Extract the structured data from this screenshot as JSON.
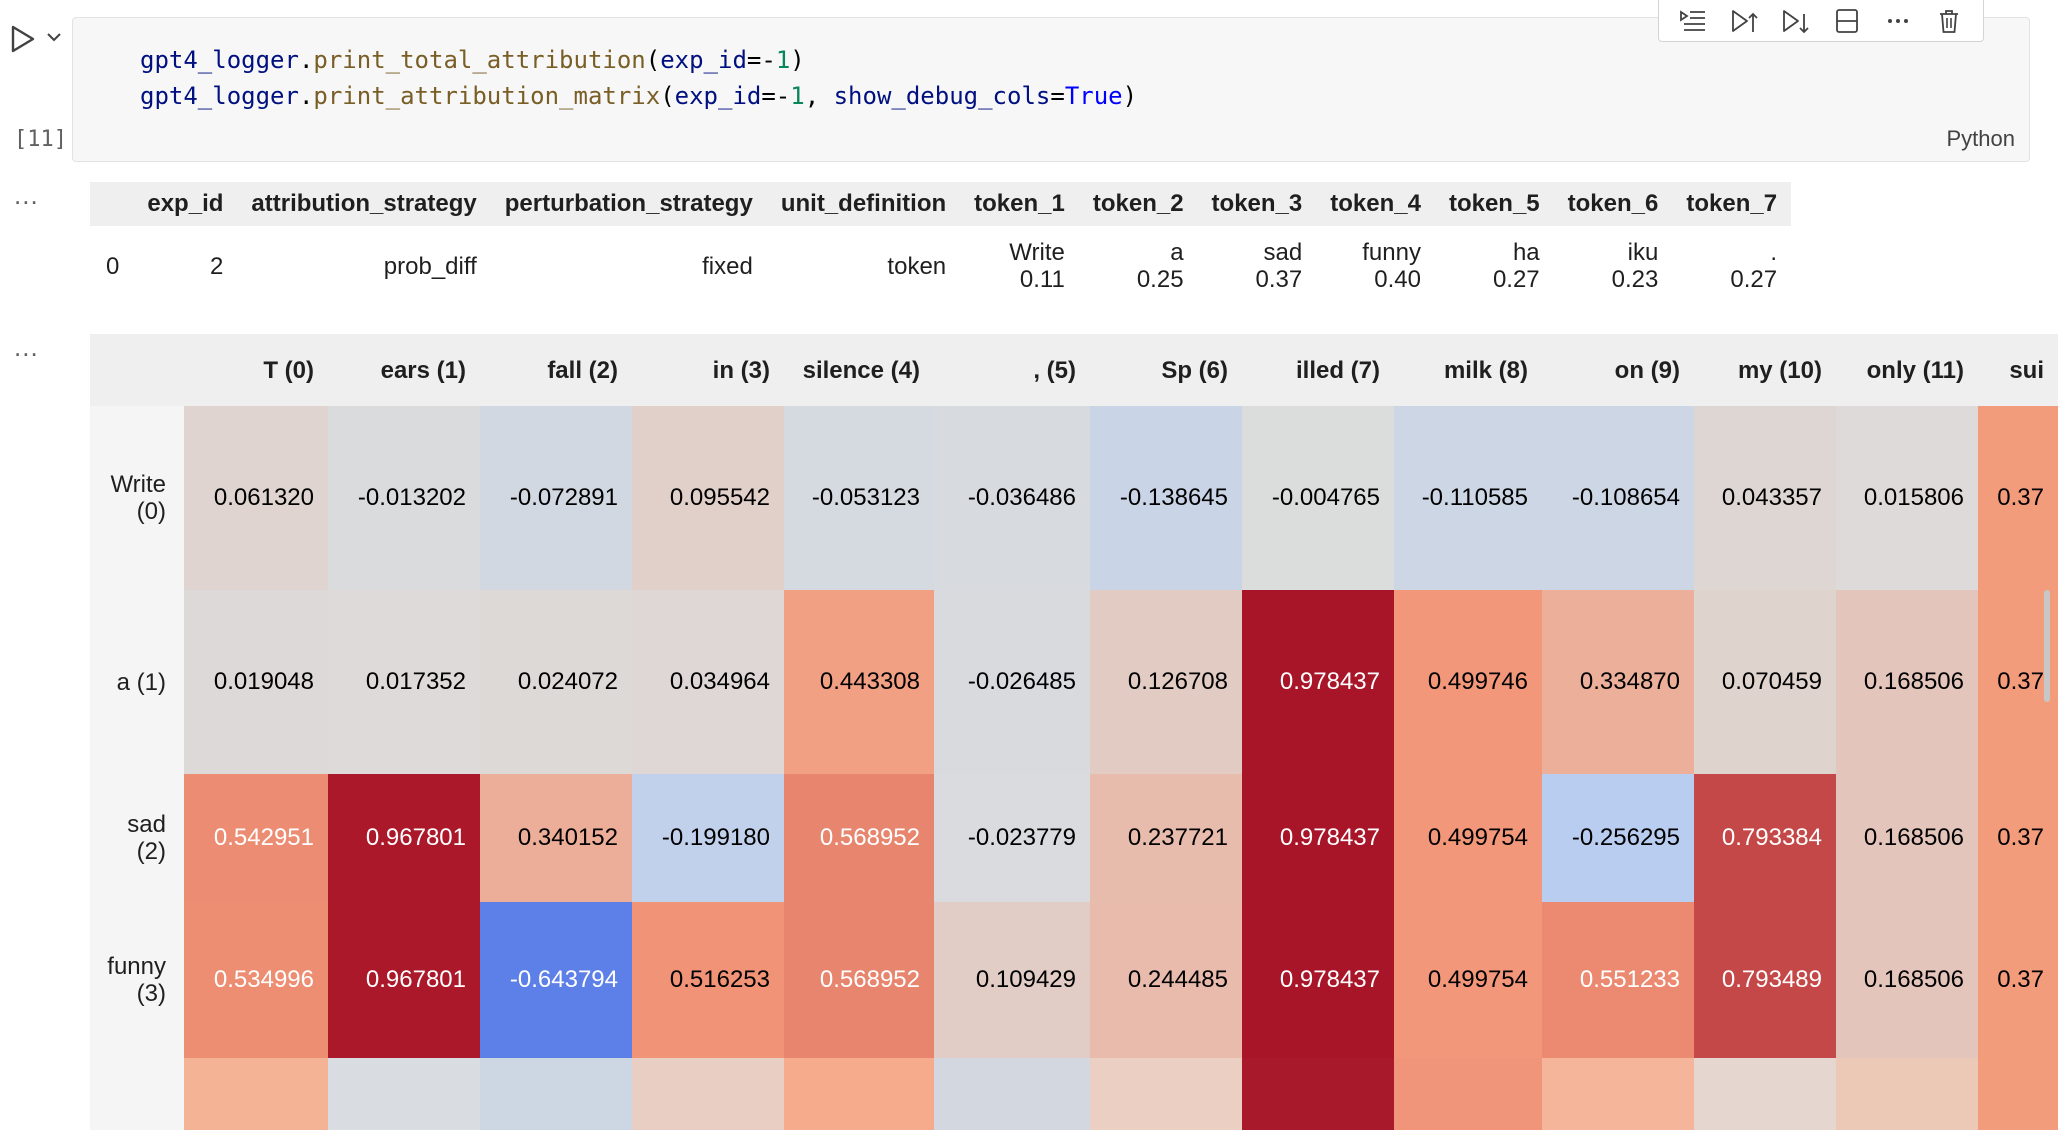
{
  "cell": {
    "exec_count": "[11]",
    "language": "Python",
    "code": [
      [
        [
          "var",
          "gpt4_logger"
        ],
        [
          "op",
          "."
        ],
        [
          "fn",
          "print_total_attribution"
        ],
        [
          "op",
          "("
        ],
        [
          "var",
          "exp_id"
        ],
        [
          "op",
          "=-"
        ],
        [
          "num",
          "1"
        ],
        [
          "op",
          ")"
        ]
      ],
      [
        [
          "var",
          "gpt4_logger"
        ],
        [
          "op",
          "."
        ],
        [
          "fn",
          "print_attribution_matrix"
        ],
        [
          "op",
          "("
        ],
        [
          "var",
          "exp_id"
        ],
        [
          "op",
          "=-"
        ],
        [
          "num",
          "1"
        ],
        [
          "op",
          ", "
        ],
        [
          "var",
          "show_debug_cols"
        ],
        [
          "op",
          "="
        ],
        [
          "kw",
          "True"
        ],
        [
          "op",
          ")"
        ]
      ]
    ],
    "toolbar": [
      "execute-above-icon",
      "execute-cell-and-above-icon",
      "execute-cell-and-below-icon",
      "split-cell-icon",
      "more-actions-icon",
      "delete-icon"
    ]
  },
  "output_more": "...",
  "summary_table": {
    "headers": [
      "",
      "exp_id",
      "attribution_strategy",
      "perturbation_strategy",
      "unit_definition",
      "token_1",
      "token_2",
      "token_3",
      "token_4",
      "token_5",
      "token_6",
      "token_7"
    ],
    "rows": [
      {
        "index": "0",
        "exp_id": "2",
        "attribution_strategy": "prob_diff",
        "perturbation_strategy": "fixed",
        "unit_definition": "token",
        "tokens": [
          {
            "token": "Write",
            "value": "0.11"
          },
          {
            "token": "a",
            "value": "0.25"
          },
          {
            "token": "sad",
            "value": "0.37"
          },
          {
            "token": "funny",
            "value": "0.40"
          },
          {
            "token": "ha",
            "value": "0.27"
          },
          {
            "token": "iku",
            "value": "0.23"
          },
          {
            "token": ".",
            "value": "0.27"
          }
        ]
      }
    ]
  },
  "matrix": {
    "columns": [
      "T (0)",
      "ears (1)",
      "fall (2)",
      "in (3)",
      "silence (4)",
      ", (5)",
      "Sp (6)",
      "illed (7)",
      "milk (8)",
      "on (9)",
      "my (10)",
      "only (11)",
      "sui"
    ],
    "rows": [
      {
        "label": "Write (0)",
        "values": [
          "0.061320",
          "-0.013202",
          "-0.072891",
          "0.095542",
          "-0.053123",
          "-0.036486",
          "-0.138645",
          "-0.004765",
          "-0.110585",
          "-0.108654",
          "0.043357",
          "0.015806",
          "0.37"
        ]
      },
      {
        "label": "a (1)",
        "values": [
          "0.019048",
          "0.017352",
          "0.024072",
          "0.034964",
          "0.443308",
          "-0.026485",
          "0.126708",
          "0.978437",
          "0.499746",
          "0.334870",
          "0.070459",
          "0.168506",
          "0.37"
        ]
      },
      {
        "label": "sad (2)",
        "values": [
          "0.542951",
          "0.967801",
          "0.340152",
          "-0.199180",
          "0.568952",
          "-0.023779",
          "0.237721",
          "0.978437",
          "0.499754",
          "-0.256295",
          "0.793384",
          "0.168506",
          "0.37"
        ]
      },
      {
        "label": "funny (3)",
        "values": [
          "0.534996",
          "0.967801",
          "-0.643794",
          "0.516253",
          "0.568952",
          "0.109429",
          "0.244485",
          "0.978437",
          "0.499754",
          "0.551233",
          "0.793489",
          "0.168506",
          "0.37"
        ]
      },
      {
        "label": "",
        "values": [
          "",
          "",
          "",
          "",
          "",
          "",
          "",
          "",
          "",
          "",
          "",
          "",
          ""
        ]
      }
    ],
    "bottom_row_colors": [
      "#f4b394",
      "#d9dce1",
      "#cdd7e3",
      "#e9cfc3",
      "#f6ac8c",
      "#d3d8e0",
      "#ebcfc2",
      "#a81a2b",
      "#f0957a",
      "#f4b59a",
      "#e5d6cf",
      "#ecc8b7",
      "#f39c7b"
    ]
  },
  "colors": {
    "cell_bg": "#f7f7f7",
    "header_bg": "#efefef",
    "heatmap_low": "#5b7ee8",
    "heatmap_mid": "#dcdcdc",
    "heatmap_high": "#a81528"
  }
}
